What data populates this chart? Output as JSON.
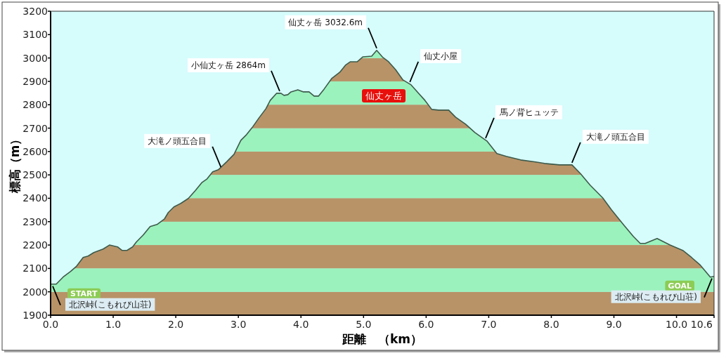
{
  "chart_data": {
    "type": "area",
    "title": "仙丈ヶ岳",
    "xlabel": "距離　（km）",
    "ylabel": "標高（m）",
    "x": [
      0,
      0.09,
      0.2,
      0.32,
      0.41,
      0.52,
      0.6,
      0.69,
      0.84,
      0.94,
      1.07,
      1.14,
      1.22,
      1.31,
      1.37,
      1.48,
      1.59,
      1.7,
      1.82,
      1.88,
      1.97,
      2.08,
      2.2,
      2.31,
      2.42,
      2.5,
      2.59,
      2.68,
      2.82,
      2.93,
      3.04,
      3.13,
      3.22,
      3.33,
      3.44,
      3.51,
      3.61,
      3.68,
      3.73,
      3.79,
      3.84,
      3.95,
      4.04,
      4.13,
      4.21,
      4.28,
      4.37,
      4.49,
      4.62,
      4.71,
      4.79,
      4.9,
      4.99,
      5.13,
      5.21,
      5.31,
      5.4,
      5.51,
      5.63,
      5.76,
      5.88,
      5.98,
      6.09,
      6.2,
      6.36,
      6.47,
      6.63,
      6.78,
      6.97,
      7.13,
      7.28,
      7.51,
      7.75,
      7.89,
      8.13,
      8.33,
      8.47,
      8.62,
      8.82,
      8.96,
      9.15,
      9.31,
      9.42,
      9.5,
      9.69,
      9.89,
      10.1,
      10.24,
      10.38,
      10.54,
      10.6
    ],
    "series": [
      {
        "color": "#3d5a4a",
        "values": [
          2033,
          2033,
          2063,
          2087,
          2108,
          2147,
          2153,
          2168,
          2183,
          2200,
          2192,
          2177,
          2177,
          2192,
          2213,
          2243,
          2279,
          2288,
          2312,
          2339,
          2363,
          2378,
          2399,
          2432,
          2468,
          2483,
          2513,
          2522,
          2558,
          2588,
          2648,
          2672,
          2702,
          2744,
          2783,
          2819,
          2849,
          2849,
          2840,
          2843,
          2855,
          2864,
          2855,
          2855,
          2837,
          2837,
          2867,
          2912,
          2939,
          2969,
          2984,
          2984,
          3005,
          3008,
          3032.6,
          3002,
          2984,
          2951,
          2906,
          2885,
          2849,
          2819,
          2780,
          2777,
          2777,
          2747,
          2717,
          2681,
          2645,
          2591,
          2579,
          2564,
          2555,
          2549,
          2543,
          2543,
          2504,
          2456,
          2402,
          2351,
          2288,
          2237,
          2207,
          2207,
          2228,
          2201,
          2177,
          2147,
          2114,
          2063,
          2066
        ]
      }
    ],
    "xlim": [
      0,
      10.6
    ],
    "ylim": [
      1900,
      3200
    ],
    "xticks": [
      {
        "value": 0,
        "label": "0.0"
      },
      {
        "value": 1,
        "label": "1.0"
      },
      {
        "value": 2,
        "label": "2.0"
      },
      {
        "value": 3,
        "label": "3.0"
      },
      {
        "value": 4,
        "label": "4.0"
      },
      {
        "value": 5,
        "label": "5.0"
      },
      {
        "value": 6,
        "label": "6.0"
      },
      {
        "value": 7,
        "label": "7.0"
      },
      {
        "value": 8,
        "label": "8.0"
      },
      {
        "value": 9,
        "label": "9.0"
      },
      {
        "value": 10,
        "label": "10.0"
      },
      10.6
    ],
    "yticks": [
      1900,
      2000,
      2100,
      2200,
      2300,
      2400,
      2500,
      2600,
      2700,
      2800,
      2900,
      3000,
      3100,
      3200
    ],
    "bands": [
      {
        "axis": "y",
        "from": 1900,
        "to": 2000,
        "color": "#b89368"
      },
      {
        "axis": "y",
        "from": 2000,
        "to": 2100,
        "color": "#9bf2bd"
      },
      {
        "axis": "y",
        "from": 2100,
        "to": 2200,
        "color": "#b89368"
      },
      {
        "axis": "y",
        "from": 2200,
        "to": 2300,
        "color": "#9bf2bd"
      },
      {
        "axis": "y",
        "from": 2300,
        "to": 2400,
        "color": "#b89368"
      },
      {
        "axis": "y",
        "from": 2400,
        "to": 2500,
        "color": "#9bf2bd"
      },
      {
        "axis": "y",
        "from": 2500,
        "to": 2600,
        "color": "#b89368"
      },
      {
        "axis": "y",
        "from": 2600,
        "to": 2700,
        "color": "#9bf2bd"
      },
      {
        "axis": "y",
        "from": 2700,
        "to": 2800,
        "color": "#b89368"
      },
      {
        "axis": "y",
        "from": 2800,
        "to": 2900,
        "color": "#9bf2bd"
      },
      {
        "axis": "y",
        "from": 2900,
        "to": 3000,
        "color": "#b89368"
      },
      {
        "axis": "y",
        "from": 3000,
        "to": 3100,
        "color": "#9bf2bd"
      }
    ],
    "annotations": [
      {
        "text": "START",
        "x": 0,
        "y": 2033
      },
      {
        "text": "北沢峠(こもれび山荘)",
        "x": 0,
        "y": 2033
      },
      {
        "text": "大滝ノ頭五合目",
        "x": 2.72,
        "y": 2525
      },
      {
        "text": "小仙丈ヶ岳 2864m",
        "x": 3.66,
        "y": 2849
      },
      {
        "text": "仙丈ヶ岳 3032.6m",
        "x": 5.21,
        "y": 3032.6
      },
      {
        "text": "仙丈小屋",
        "x": 5.74,
        "y": 2888
      },
      {
        "text": "馬ノ背ヒュッテ",
        "x": 6.95,
        "y": 2648
      },
      {
        "text": "大滝ノ頭五合目",
        "x": 8.33,
        "y": 2543
      },
      {
        "text": "GOAL",
        "x": 10.6,
        "y": 2066
      },
      {
        "text": "北沢峠(こもれび山荘)",
        "x": 10.6,
        "y": 2066
      }
    ],
    "grid": false
  }
}
